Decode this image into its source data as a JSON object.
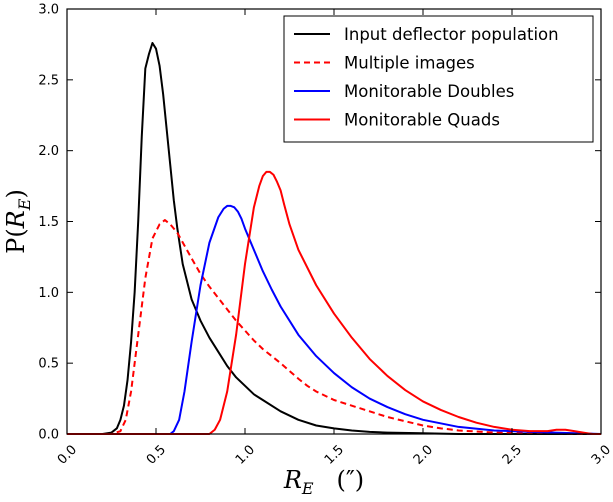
{
  "chart_data": {
    "type": "line",
    "xlabel": "R_E (″)",
    "ylabel": "P(R_E)",
    "xlim": [
      0.0,
      3.0
    ],
    "ylim": [
      0.0,
      3.0
    ],
    "xticks": [
      "0.0",
      "0.5",
      "1.0",
      "1.5",
      "2.0",
      "2.5",
      "3.0"
    ],
    "yticks": [
      "0.0",
      "0.5",
      "1.0",
      "1.5",
      "2.0",
      "2.5",
      "3.0"
    ],
    "legend_position": "top-right",
    "grid": false,
    "series": [
      {
        "name": "Input deflector population",
        "color": "#000000",
        "dash": "solid",
        "x": [
          0.0,
          0.2,
          0.25,
          0.28,
          0.3,
          0.32,
          0.34,
          0.36,
          0.38,
          0.4,
          0.42,
          0.44,
          0.46,
          0.48,
          0.5,
          0.52,
          0.54,
          0.56,
          0.58,
          0.6,
          0.62,
          0.65,
          0.7,
          0.75,
          0.8,
          0.85,
          0.9,
          0.95,
          1.0,
          1.05,
          1.1,
          1.2,
          1.3,
          1.4,
          1.5,
          1.6,
          1.7,
          1.8,
          2.0,
          2.2,
          2.5,
          3.0
        ],
        "y": [
          0.0,
          0.0,
          0.01,
          0.04,
          0.1,
          0.2,
          0.38,
          0.65,
          1.0,
          1.5,
          2.1,
          2.58,
          2.68,
          2.76,
          2.72,
          2.6,
          2.4,
          2.15,
          1.9,
          1.65,
          1.45,
          1.2,
          0.95,
          0.8,
          0.68,
          0.58,
          0.48,
          0.4,
          0.34,
          0.28,
          0.24,
          0.16,
          0.1,
          0.06,
          0.04,
          0.025,
          0.015,
          0.01,
          0.005,
          0.0,
          0.0,
          0.0
        ]
      },
      {
        "name": "Multiple images",
        "color": "#ff0000",
        "dash": "dashed",
        "x": [
          0.0,
          0.25,
          0.3,
          0.33,
          0.36,
          0.4,
          0.44,
          0.48,
          0.52,
          0.55,
          0.58,
          0.62,
          0.66,
          0.7,
          0.75,
          0.8,
          0.85,
          0.9,
          0.95,
          1.0,
          1.05,
          1.1,
          1.15,
          1.2,
          1.3,
          1.35,
          1.4,
          1.5,
          1.6,
          1.7,
          1.8,
          1.9,
          2.0,
          2.1,
          2.2,
          2.4,
          2.6,
          3.0
        ],
        "y": [
          0.0,
          0.0,
          0.02,
          0.1,
          0.3,
          0.7,
          1.1,
          1.38,
          1.48,
          1.51,
          1.48,
          1.42,
          1.33,
          1.24,
          1.13,
          1.04,
          0.96,
          0.88,
          0.8,
          0.73,
          0.66,
          0.6,
          0.55,
          0.5,
          0.39,
          0.34,
          0.3,
          0.24,
          0.2,
          0.16,
          0.12,
          0.09,
          0.06,
          0.04,
          0.025,
          0.01,
          0.005,
          0.0
        ]
      },
      {
        "name": "Monitorable Doubles",
        "color": "#0000ff",
        "dash": "solid",
        "x": [
          0.0,
          0.58,
          0.6,
          0.63,
          0.66,
          0.7,
          0.75,
          0.8,
          0.85,
          0.88,
          0.9,
          0.92,
          0.94,
          0.96,
          0.98,
          1.0,
          1.05,
          1.1,
          1.15,
          1.2,
          1.3,
          1.4,
          1.5,
          1.6,
          1.7,
          1.8,
          1.9,
          2.0,
          2.2,
          2.4,
          2.6,
          3.0
        ],
        "y": [
          0.0,
          0.0,
          0.02,
          0.1,
          0.3,
          0.65,
          1.05,
          1.35,
          1.53,
          1.59,
          1.61,
          1.61,
          1.6,
          1.57,
          1.52,
          1.45,
          1.3,
          1.15,
          1.02,
          0.9,
          0.7,
          0.55,
          0.43,
          0.33,
          0.25,
          0.19,
          0.14,
          0.1,
          0.05,
          0.025,
          0.015,
          0.0
        ]
      },
      {
        "name": "Monitorable Quads",
        "color": "#ff0000",
        "dash": "solid",
        "x": [
          0.0,
          0.8,
          0.83,
          0.86,
          0.9,
          0.95,
          1.0,
          1.05,
          1.08,
          1.1,
          1.12,
          1.14,
          1.16,
          1.18,
          1.2,
          1.22,
          1.25,
          1.3,
          1.4,
          1.5,
          1.6,
          1.7,
          1.8,
          1.9,
          2.0,
          2.1,
          2.2,
          2.3,
          2.4,
          2.5,
          2.6,
          2.7,
          2.75,
          2.8,
          2.85,
          2.9,
          2.95,
          3.0
        ],
        "y": [
          0.0,
          0.0,
          0.03,
          0.1,
          0.3,
          0.7,
          1.2,
          1.6,
          1.75,
          1.82,
          1.85,
          1.85,
          1.83,
          1.78,
          1.72,
          1.62,
          1.48,
          1.3,
          1.05,
          0.85,
          0.68,
          0.53,
          0.41,
          0.31,
          0.23,
          0.17,
          0.12,
          0.08,
          0.05,
          0.03,
          0.02,
          0.02,
          0.03,
          0.03,
          0.02,
          0.01,
          0.0,
          0.0
        ]
      }
    ]
  }
}
